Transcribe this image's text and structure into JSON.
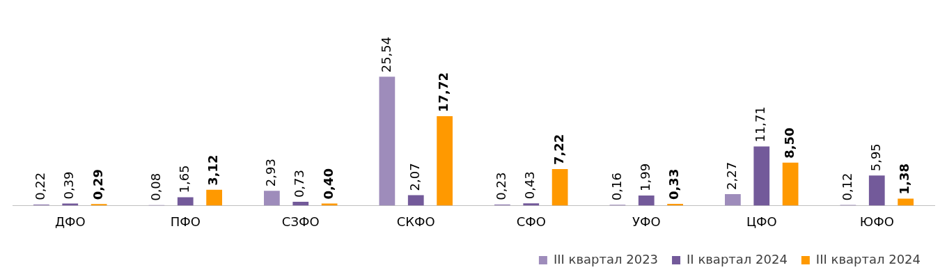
{
  "chart_data": {
    "type": "bar",
    "categories": [
      "ДФО",
      "ПФО",
      "СЗФО",
      "СКФО",
      "СФО",
      "УФО",
      "ЦФО",
      "ЮФО"
    ],
    "series": [
      {
        "name": "III квартал 2023",
        "color": "#9e8cbb",
        "values": [
          0.22,
          0.08,
          2.93,
          25.54,
          0.23,
          0.16,
          2.27,
          0.12
        ],
        "value_labels": [
          "0,22",
          "0,08",
          "2,93",
          "25,54",
          "0,23",
          "0,16",
          "2,27",
          "0,12"
        ]
      },
      {
        "name": "II квартал 2024",
        "color": "#735a9a",
        "values": [
          0.39,
          1.65,
          0.73,
          2.07,
          0.43,
          1.99,
          11.71,
          5.95
        ],
        "value_labels": [
          "0,39",
          "1,65",
          "0,73",
          "2,07",
          "0,43",
          "1,99",
          "11,71",
          "5,95"
        ]
      },
      {
        "name": "III квартал 2024",
        "color": "#ff9900",
        "values": [
          0.29,
          3.12,
          0.4,
          17.72,
          7.22,
          0.33,
          8.5,
          1.38
        ],
        "value_labels": [
          "0,29",
          "3,12",
          "0,40",
          "17,72",
          "7,22",
          "0,33",
          "8,50",
          "1,38"
        ]
      }
    ],
    "grid": false,
    "legend": "bottom right"
  }
}
